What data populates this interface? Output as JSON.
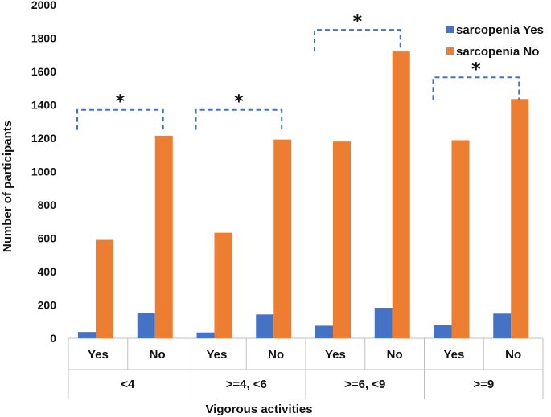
{
  "chart_data": {
    "type": "bar",
    "title": "",
    "xlabel": "Vigorous  activities",
    "ylabel": "Number of participants",
    "ylim": [
      0,
      2000
    ],
    "yticks": [
      0,
      200,
      400,
      600,
      800,
      1000,
      1200,
      1400,
      1600,
      1800,
      2000
    ],
    "groups": [
      {
        "label": "<4",
        "subcategories": [
          "Yes",
          "No"
        ]
      },
      {
        "label": ">=4, <6",
        "subcategories": [
          "Yes",
          "No"
        ]
      },
      {
        "label": ">=6, <9",
        "subcategories": [
          "Yes",
          "No"
        ]
      },
      {
        "label": ">=9",
        "subcategories": [
          "Yes",
          "No"
        ]
      }
    ],
    "categories": [
      "<4 Yes",
      "<4 No",
      ">=4, <6 Yes",
      ">=4, <6 No",
      ">=6, <9 Yes",
      ">=6, <9 No",
      ">=9 Yes",
      ">=9 No"
    ],
    "series": [
      {
        "name": "sarcopenia Yes",
        "color": "#4472C4",
        "values": [
          38,
          150,
          35,
          143,
          75,
          183,
          78,
          148
        ]
      },
      {
        "name": "sarcopenia No",
        "color": "#ED7D31",
        "values": [
          590,
          1215,
          633,
          1192,
          1180,
          1720,
          1188,
          1435
        ]
      }
    ],
    "significance_marker": "*",
    "bracket_color": "#4472C4",
    "legend_position": "top-right",
    "grid": false
  }
}
